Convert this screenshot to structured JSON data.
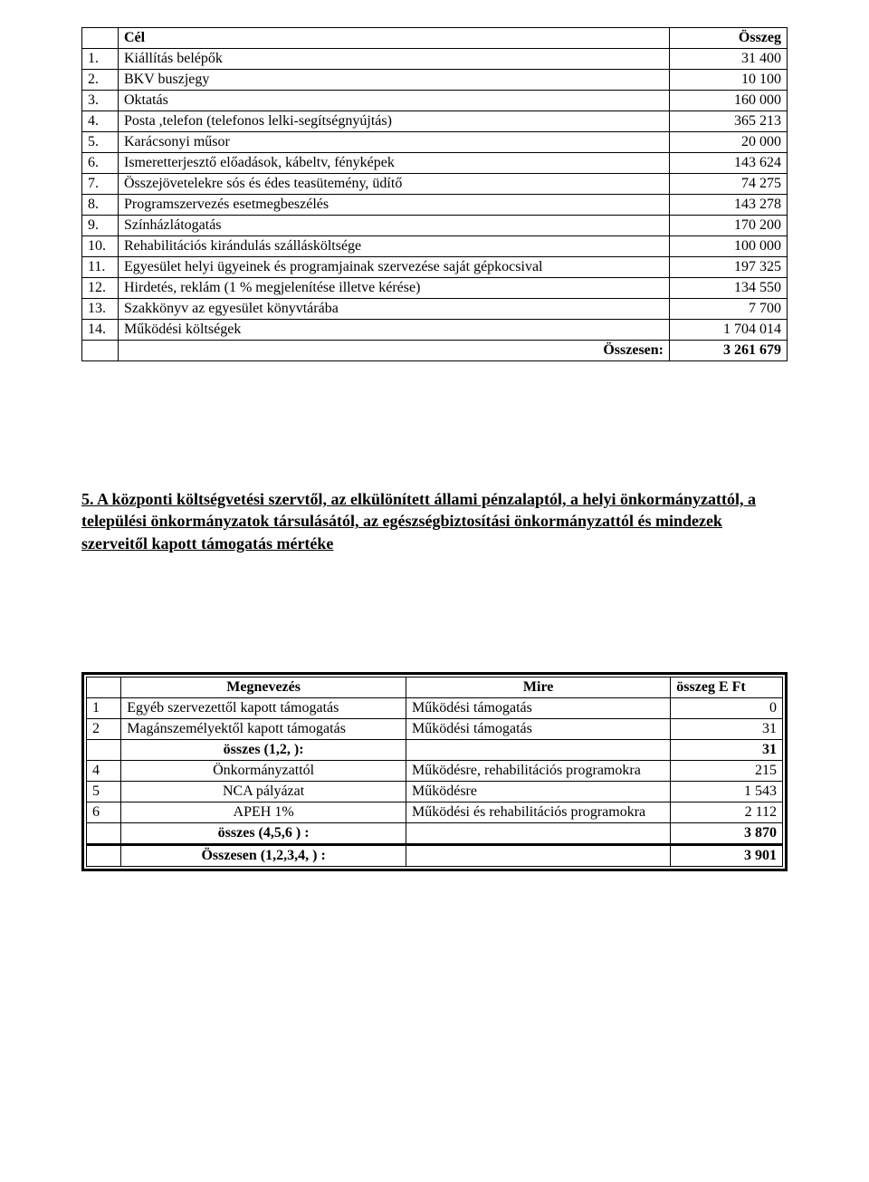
{
  "table1": {
    "headers": {
      "num": "",
      "name": "Cél",
      "value": "Összeg"
    },
    "rows": [
      {
        "num": "1.",
        "name": "Kiállítás belépők",
        "value": "31 400"
      },
      {
        "num": "2.",
        "name": "BKV buszjegy",
        "value": "10 100"
      },
      {
        "num": "3.",
        "name": "Oktatás",
        "value": "160 000"
      },
      {
        "num": "4.",
        "name": "Posta ,telefon (telefonos lelki-segítségnyújtás)",
        "value": "365 213"
      },
      {
        "num": "5.",
        "name": "Karácsonyi műsor",
        "value": "20 000"
      },
      {
        "num": "6.",
        "name": "Ismeretterjesztő előadások, kábeltv, fényképek",
        "value": "143 624"
      },
      {
        "num": "7.",
        "name": "Összejövetelekre sós és édes teasütemény, üdítő",
        "value": "74 275"
      },
      {
        "num": "8.",
        "name": "Programszervezés esetmegbeszélés",
        "value": "143 278"
      },
      {
        "num": "9.",
        "name": "Színházlátogatás",
        "value": "170 200"
      },
      {
        "num": "10.",
        "name": "Rehabilitációs kirándulás szállásköltsége",
        "value": "100 000"
      },
      {
        "num": "11.",
        "name": "Egyesület helyi ügyeinek és programjainak szervezése saját gépkocsival",
        "value": "197 325"
      },
      {
        "num": "12.",
        "name": "Hirdetés, reklám (1 % megjelenítése illetve kérése)",
        "value": "134 550"
      },
      {
        "num": "13.",
        "name": "Szakkönyv az egyesület könyvtárába",
        "value": "7 700"
      },
      {
        "num": "14.",
        "name": "Működési költségek",
        "value": "1 704 014"
      }
    ],
    "total": {
      "label": "Összesen:",
      "value": "3 261 679"
    }
  },
  "section_heading": "5.    A központi költségvetési szervtől, az elkülönített állami pénzalaptól, a helyi önkormányzattól, a települési önkormányzatok társulásától, az egészségbiztosítási önkormányzattól és mindezek szerveitől kapott támogatás mértéke",
  "table2": {
    "headers": {
      "num": "",
      "name": "Megnevezés",
      "mire": "Mire",
      "value": "összeg E Ft"
    },
    "rows1": [
      {
        "num": "1",
        "name": "Egyéb szervezettől kapott támogatás",
        "mire": "Működési támogatás",
        "value": "0"
      },
      {
        "num": "2",
        "name": "Magánszemélyektől kapott támogatás",
        "mire": "Működési támogatás",
        "value": "31"
      }
    ],
    "sub1": {
      "label": "összes (1,2, ):",
      "value": "31"
    },
    "rows2": [
      {
        "num": "4",
        "name": "Önkormányzattól",
        "mire": "Működésre, rehabilitációs programokra",
        "value": "215"
      },
      {
        "num": "5",
        "name": "NCA pályázat",
        "mire": "Működésre",
        "value": "1 543"
      },
      {
        "num": "6",
        "name": "APEH 1%",
        "mire": "Működési és rehabilitációs programokra",
        "value": "2 112"
      }
    ],
    "sub2": {
      "label": "összes (4,5,6 ) :",
      "value": "3 870"
    },
    "grand": {
      "label": "Összesen  (1,2,3,4, ) :",
      "value": "3 901"
    }
  }
}
